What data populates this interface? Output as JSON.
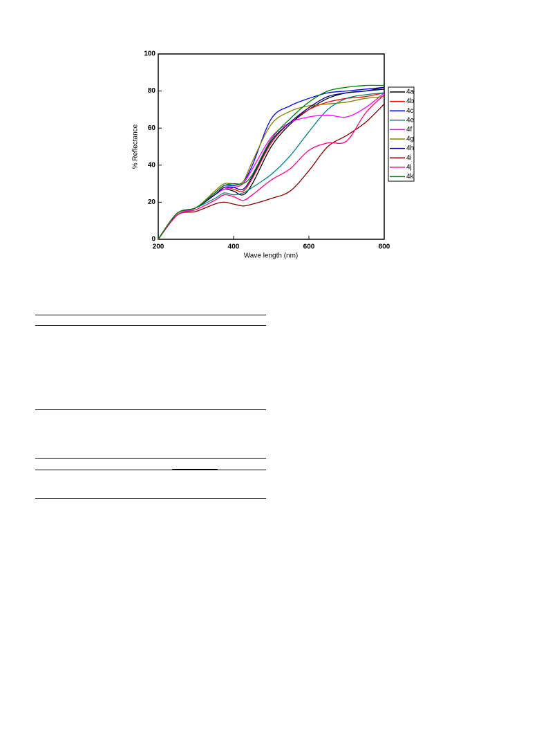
{
  "chart_data": {
    "type": "line",
    "x_label": "Wave length (nm)",
    "y_label": "% Reflectance",
    "x": [
      200,
      250,
      300,
      350,
      375,
      400,
      425,
      450,
      500,
      550,
      600,
      650,
      700,
      750,
      800
    ],
    "xlim": [
      200,
      800
    ],
    "xticks": [
      200,
      400,
      600,
      800
    ],
    "ylim": [
      0,
      100
    ],
    "yticks": [
      0,
      20,
      40,
      60,
      80,
      100
    ],
    "series": [
      {
        "name": "4a",
        "color": "#000000",
        "values": [
          0,
          13,
          17,
          24,
          27,
          26,
          24,
          30,
          50,
          62,
          70,
          76,
          79,
          80,
          81
        ]
      },
      {
        "name": "4b",
        "color": "#ff0000",
        "values": [
          0,
          13,
          17,
          24,
          28,
          27,
          26,
          33,
          52,
          63,
          70,
          74,
          76,
          77,
          79
        ]
      },
      {
        "name": "4c",
        "color": "#0000ff",
        "values": [
          0,
          14,
          17,
          25,
          29,
          29,
          31,
          40,
          65,
          72,
          76,
          79,
          80,
          81,
          82
        ]
      },
      {
        "name": "4e",
        "color": "#008080",
        "values": [
          0,
          13,
          17,
          22,
          25,
          24,
          25,
          28,
          35,
          45,
          58,
          70,
          76,
          78,
          79
        ]
      },
      {
        "name": "4f",
        "color": "#ff00ff",
        "values": [
          0,
          13,
          17,
          24,
          27,
          28,
          30,
          38,
          55,
          63,
          66,
          67,
          66,
          71,
          79
        ]
      },
      {
        "name": "4g",
        "color": "#808000",
        "values": [
          0,
          14,
          17,
          26,
          30,
          30,
          31,
          42,
          62,
          69,
          72,
          73,
          74,
          76,
          77
        ]
      },
      {
        "name": "4h",
        "color": "#000080",
        "values": [
          0,
          14,
          17,
          24,
          28,
          28,
          27,
          34,
          53,
          63,
          71,
          77,
          79,
          80,
          82
        ]
      },
      {
        "name": "4i",
        "color": "#800000",
        "values": [
          0,
          13,
          15,
          19,
          20,
          19,
          18,
          19,
          22,
          26,
          37,
          50,
          56,
          63,
          73
        ]
      },
      {
        "name": "4j",
        "color": "#ff0080",
        "values": [
          0,
          13,
          16,
          21,
          24,
          23,
          21,
          24,
          32,
          38,
          48,
          52,
          53,
          68,
          78
        ]
      },
      {
        "name": "4k",
        "color": "#008000",
        "values": [
          0,
          14,
          17,
          25,
          29,
          30,
          30,
          35,
          54,
          65,
          74,
          80,
          82,
          83,
          83
        ]
      }
    ]
  }
}
